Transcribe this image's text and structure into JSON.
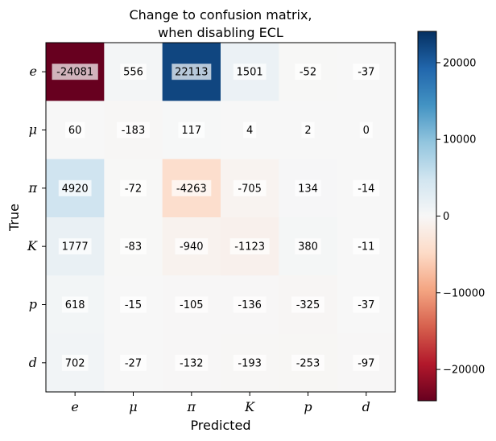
{
  "chart_data": {
    "type": "heatmap",
    "title": [
      "Change to confusion matrix,",
      "when disabling ECL"
    ],
    "xlabel": "Predicted",
    "ylabel": "True",
    "x_categories": [
      "e",
      "μ",
      "π",
      "K",
      "p",
      "d"
    ],
    "y_categories": [
      "e",
      "μ",
      "π",
      "K",
      "p",
      "d"
    ],
    "values": [
      [
        -24081,
        556,
        22113,
        1501,
        -52,
        -37
      ],
      [
        60,
        -183,
        117,
        4,
        2,
        0
      ],
      [
        4920,
        -72,
        -4263,
        -705,
        134,
        -14
      ],
      [
        1777,
        -83,
        -940,
        -1123,
        380,
        -11
      ],
      [
        618,
        -15,
        -105,
        -136,
        -325,
        -37
      ],
      [
        702,
        -27,
        -132,
        -193,
        -253,
        -97
      ]
    ],
    "colormap": "RdBu",
    "color_range": [
      -24081,
      24081
    ],
    "colorbar_ticks": [
      -20000,
      -10000,
      0,
      10000,
      20000
    ],
    "colorbar_tick_labels": [
      "−20000",
      "−10000",
      "0",
      "10000",
      "20000"
    ],
    "grid": false
  }
}
